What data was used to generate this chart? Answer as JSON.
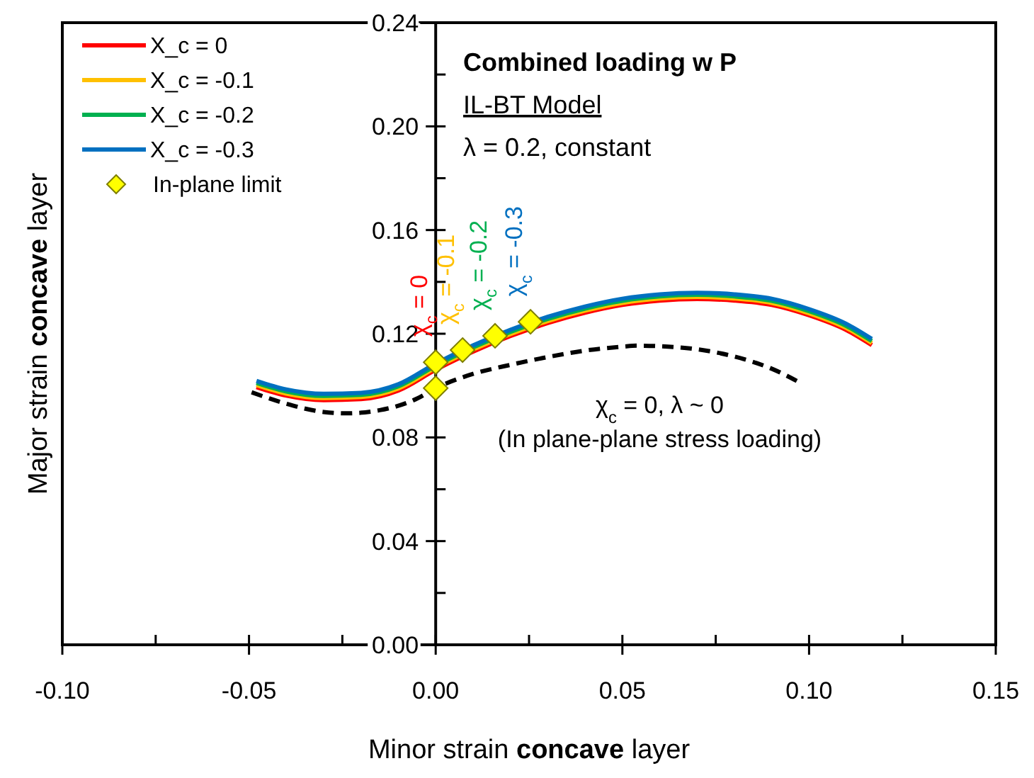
{
  "chart_data": {
    "type": "line",
    "title": "Combined loading w P",
    "subtitle": "IL-BT Model",
    "xlabel": "Minor strain concave layer",
    "ylabel": "Major strain concave layer",
    "xlim": [
      -0.1,
      0.15
    ],
    "xticks": [
      {
        "value": -0.1,
        "label": "-0.10"
      },
      {
        "value": -0.075,
        "label": null
      },
      {
        "value": -0.05,
        "label": "-0.05"
      },
      {
        "value": -0.025,
        "label": null
      },
      {
        "value": 0,
        "label": "0.00"
      },
      {
        "value": 0.025,
        "label": null
      },
      {
        "value": 0.05,
        "label": "0.05"
      },
      {
        "value": 0.075,
        "label": null
      },
      {
        "value": 0.1,
        "label": "0.10"
      },
      {
        "value": 0.125,
        "label": null
      },
      {
        "value": 0.15,
        "label": "0.15"
      }
    ],
    "ylim": [
      0,
      0.24
    ],
    "yticks": [
      {
        "value": 0,
        "label": "0.00"
      },
      {
        "value": 0.02,
        "label": null
      },
      {
        "value": 0.04,
        "label": "0.04"
      },
      {
        "value": 0.06,
        "label": null
      },
      {
        "value": 0.08,
        "label": "0.08"
      },
      {
        "value": 0.1,
        "label": null
      },
      {
        "value": 0.12,
        "label": "0.12"
      },
      {
        "value": 0.14,
        "label": null
      },
      {
        "value": 0.16,
        "label": "0.16"
      },
      {
        "value": 0.18,
        "label": null
      },
      {
        "value": 0.2,
        "label": "0.20"
      },
      {
        "value": 0.22,
        "label": null
      },
      {
        "value": 0.24,
        "label": "0.24"
      }
    ],
    "grid": false,
    "legend": "top left",
    "line_style": "solid",
    "marker": "none",
    "series": [
      {
        "name": "X_c = 0",
        "color": "#ff0000",
        "x": [
          -0.048,
          -0.04,
          -0.03,
          -0.02,
          -0.01,
          0,
          0.01,
          0.02,
          0.03,
          0.04,
          0.05,
          0.06,
          0.07,
          0.08,
          0.09,
          0.1,
          0.11,
          0.1168
        ],
        "values": [
          0.0994,
          0.0961,
          0.0944,
          0.0948,
          0.0981,
          0.1061,
          0.1131,
          0.1191,
          0.1241,
          0.1281,
          0.1311,
          0.1328,
          0.1334,
          0.1328,
          0.1311,
          0.1271,
          0.1214,
          0.1156
        ]
      },
      {
        "name": "X_c = -0.1",
        "color": "#ffc000",
        "x": [
          -0.048,
          -0.04,
          -0.03,
          -0.02,
          -0.01,
          0,
          0.01,
          0.02,
          0.03,
          0.04,
          0.05,
          0.06,
          0.07,
          0.08,
          0.09,
          0.1,
          0.11,
          0.1168
        ],
        "values": [
          0.1002,
          0.0969,
          0.0952,
          0.0956,
          0.0989,
          0.1069,
          0.1139,
          0.1199,
          0.1249,
          0.1289,
          0.1319,
          0.1336,
          0.1342,
          0.1336,
          0.1319,
          0.1279,
          0.1222,
          0.1164
        ]
      },
      {
        "name": "X_c = -0.2",
        "color": "#00b050",
        "x": [
          -0.048,
          -0.04,
          -0.03,
          -0.02,
          -0.01,
          0,
          0.01,
          0.02,
          0.03,
          0.04,
          0.05,
          0.06,
          0.07,
          0.08,
          0.09,
          0.1,
          0.11,
          0.1168
        ],
        "values": [
          0.101,
          0.0977,
          0.096,
          0.0964,
          0.0997,
          0.1077,
          0.1147,
          0.1207,
          0.1257,
          0.1297,
          0.1327,
          0.1344,
          0.135,
          0.1344,
          0.1327,
          0.1287,
          0.123,
          0.1172
        ]
      },
      {
        "name": "X_c = -0.3",
        "color": "#0070c0",
        "x": [
          -0.048,
          -0.04,
          -0.03,
          -0.02,
          -0.01,
          0,
          0.01,
          0.02,
          0.03,
          0.04,
          0.05,
          0.06,
          0.07,
          0.08,
          0.09,
          0.1,
          0.11,
          0.1168
        ],
        "values": [
          0.1018,
          0.0985,
          0.0968,
          0.0972,
          0.1005,
          0.1085,
          0.1155,
          0.1215,
          0.1265,
          0.1305,
          0.1335,
          0.1352,
          0.1358,
          0.1352,
          0.1335,
          0.1295,
          0.1238,
          0.118
        ]
      },
      {
        "color": "#000000",
        "line_style": "dashed",
        "x": [
          -0.0493,
          -0.04,
          -0.03,
          -0.024,
          -0.015,
          -0.005,
          0,
          0.01,
          0.02,
          0.03,
          0.04,
          0.05,
          0.054,
          0.06,
          0.07,
          0.08,
          0.09,
          0.0975
        ],
        "values": [
          0.0974,
          0.093,
          0.0898,
          0.0893,
          0.0905,
          0.095,
          0.099,
          0.1045,
          0.108,
          0.111,
          0.1135,
          0.115,
          0.1154,
          0.1152,
          0.114,
          0.1112,
          0.1065,
          0.1012
        ]
      },
      {
        "name": "In-plane limit",
        "type": "scatter",
        "marker": "diamond",
        "color": "#ffff00",
        "x": [
          0,
          0.0072,
          0.0159,
          0.0254,
          0
        ],
        "values": [
          0.109,
          0.1137,
          0.1192,
          0.1246,
          0.099
        ]
      }
    ],
    "annotations": [
      "λ = 0.2, constant",
      {
        "text": "χ$_{c}$ = 0",
        "x": 0,
        "y": 0.109
      },
      {
        "text": "χ$_{c}$ = -0.1",
        "x": 0.0072,
        "y": 0.1137
      },
      {
        "text": "χ$_{c}$ = -0.2",
        "x": 0.0159,
        "y": 0.1192
      },
      {
        "text": "χ$_{c}$ = -0.3",
        "x": 0.0254,
        "y": 0.1246
      },
      {
        "text": "χ$_{c}$ = 0, λ ~ 0",
        "x": 0.06,
        "y": 0.1152
      },
      "(In plane-plane stress loading)"
    ]
  }
}
